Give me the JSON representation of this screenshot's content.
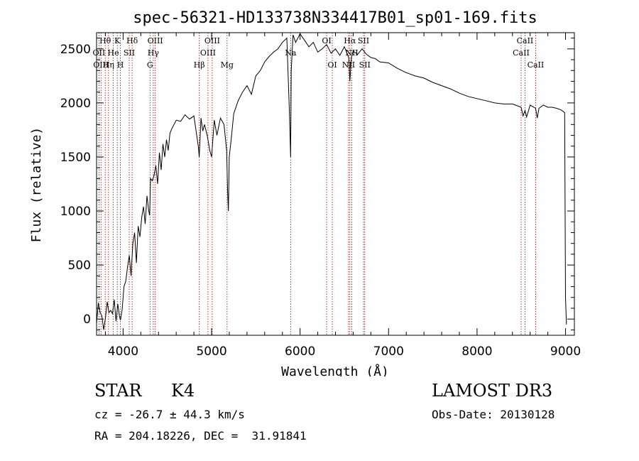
{
  "chart_data": {
    "type": "line",
    "title": "spec-56321-HD133738N334417B01_sp01-169.fits",
    "xlabel": "Wavelength (Å)",
    "ylabel": "Flux (relative)",
    "xlim": [
      3700,
      9100
    ],
    "ylim": [
      -150,
      2650
    ],
    "xticks": [
      4000,
      5000,
      6000,
      7000,
      8000,
      9000
    ],
    "yticks": [
      0,
      500,
      1000,
      1500,
      2000,
      2500
    ],
    "grid": false,
    "series": [
      {
        "name": "flux",
        "x": [
          3700,
          3720,
          3740,
          3760,
          3780,
          3800,
          3820,
          3840,
          3860,
          3880,
          3900,
          3920,
          3940,
          3960,
          3970,
          3990,
          4010,
          4030,
          4050,
          4070,
          4090,
          4110,
          4130,
          4150,
          4170,
          4190,
          4210,
          4230,
          4250,
          4270,
          4290,
          4300,
          4310,
          4330,
          4350,
          4370,
          4390,
          4410,
          4430,
          4450,
          4470,
          4490,
          4510,
          4530,
          4550,
          4600,
          4650,
          4700,
          4750,
          4800,
          4850,
          4860,
          4880,
          4900,
          4920,
          4950,
          4980,
          5000,
          5030,
          5060,
          5100,
          5140,
          5170,
          5180,
          5190,
          5200,
          5220,
          5250,
          5300,
          5350,
          5400,
          5450,
          5500,
          5550,
          5600,
          5650,
          5700,
          5750,
          5800,
          5850,
          5880,
          5893,
          5900,
          5920,
          5950,
          6000,
          6050,
          6100,
          6150,
          6200,
          6250,
          6300,
          6350,
          6400,
          6450,
          6500,
          6550,
          6563,
          6580,
          6600,
          6650,
          6700,
          6750,
          6800,
          6850,
          6900,
          7000,
          7100,
          7200,
          7300,
          7400,
          7500,
          7600,
          7700,
          7800,
          7900,
          8000,
          8100,
          8200,
          8300,
          8400,
          8498,
          8520,
          8542,
          8560,
          8600,
          8662,
          8680,
          8700,
          8750,
          8800,
          8850,
          8900,
          8950,
          8990,
          9000,
          9010
        ],
        "y": [
          -40,
          150,
          60,
          30,
          -100,
          10,
          160,
          60,
          80,
          50,
          180,
          -20,
          140,
          20,
          -10,
          90,
          300,
          350,
          480,
          590,
          400,
          700,
          800,
          520,
          860,
          760,
          940,
          1040,
          880,
          1140,
          1000,
          960,
          1300,
          1280,
          1330,
          1420,
          1250,
          1540,
          1380,
          1620,
          1500,
          1660,
          1560,
          1720,
          1760,
          1840,
          1830,
          1890,
          1850,
          1880,
          1600,
          1500,
          1860,
          1740,
          1800,
          1700,
          1560,
          1500,
          1840,
          1700,
          1860,
          1800,
          1560,
          1200,
          1000,
          1500,
          1650,
          1900,
          2020,
          2100,
          2160,
          2080,
          2250,
          2300,
          2380,
          2430,
          2470,
          2500,
          2560,
          2600,
          1900,
          1500,
          2300,
          2630,
          2560,
          2640,
          2580,
          2520,
          2560,
          2470,
          2500,
          2540,
          2460,
          2500,
          2440,
          2520,
          2420,
          2200,
          2420,
          2480,
          2450,
          2500,
          2450,
          2420,
          2410,
          2380,
          2370,
          2320,
          2280,
          2250,
          2230,
          2190,
          2160,
          2130,
          2090,
          2060,
          2040,
          2020,
          2000,
          1990,
          1990,
          1960,
          1880,
          1930,
          1870,
          1980,
          1950,
          1860,
          1950,
          1980,
          1960,
          1960,
          1950,
          1935,
          1910,
          200,
          -50
        ]
      }
    ],
    "spectral_lines": [
      {
        "label": "Hθ",
        "x": 3798,
        "row": 1
      },
      {
        "label": "OII",
        "x": 3727,
        "row": 2
      },
      {
        "label": "OIII",
        "x": 3750,
        "row": 3
      },
      {
        "label": "K",
        "x": 3934,
        "row": 1
      },
      {
        "label": "He",
        "x": 3889,
        "row": 2
      },
      {
        "label": "Hη",
        "x": 3835,
        "row": 3
      },
      {
        "label": "SII",
        "x": 4069,
        "row": 2
      },
      {
        "label": "H",
        "x": 3969,
        "row": 3
      },
      {
        "label": "Hδ",
        "x": 4102,
        "row": 1
      },
      {
        "label": "OIII",
        "x": 4363,
        "row": 1
      },
      {
        "label": "Hγ",
        "x": 4341,
        "row": 2
      },
      {
        "label": "G",
        "x": 4304,
        "row": 3
      },
      {
        "label": "Hβ",
        "x": 4861,
        "row": 3
      },
      {
        "label": "OIII",
        "x": 5007,
        "row": 1
      },
      {
        "label": "OIII",
        "x": 4959,
        "row": 2
      },
      {
        "label": "Mg",
        "x": 5175,
        "row": 3
      },
      {
        "label": "Na",
        "x": 5893,
        "row": 2
      },
      {
        "label": "OI",
        "x": 6300,
        "row": 1
      },
      {
        "label": "OI",
        "x": 6364,
        "row": 3
      },
      {
        "label": "Hα",
        "x": 6563,
        "row": 1
      },
      {
        "label": "NII",
        "x": 6584,
        "row": 2
      },
      {
        "label": "NII",
        "x": 6548,
        "row": 3
      },
      {
        "label": "SII",
        "x": 6717,
        "row": 1
      },
      {
        "label": "SII",
        "x": 6731,
        "row": 3
      },
      {
        "label": "CaII",
        "x": 8542,
        "row": 1
      },
      {
        "label": "CaII",
        "x": 8498,
        "row": 2
      },
      {
        "label": "CaII",
        "x": 8662,
        "row": 3
      }
    ]
  },
  "info": {
    "object_type": "STAR",
    "subclass": "K4",
    "survey": "LAMOST DR3",
    "redshift": "cz = -26.7 ± 44.3 km/s",
    "obs_date": "Obs-Date: 20130128",
    "coords": "RA = 204.18226, DEC =  31.91841"
  }
}
